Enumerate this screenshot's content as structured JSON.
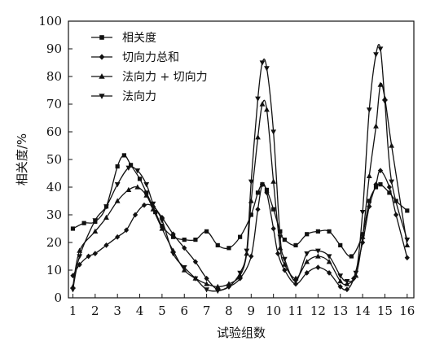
{
  "chart_data": {
    "type": "line",
    "xlabel": "试验组数",
    "ylabel": "相关度/%",
    "xlim": [
      0.8,
      16.3
    ],
    "ylim": [
      0,
      100
    ],
    "x_ticks": [
      1,
      2,
      3,
      4,
      5,
      6,
      7,
      8,
      9,
      10,
      11,
      12,
      13,
      14,
      15,
      16
    ],
    "y_ticks": [
      0,
      10,
      20,
      30,
      40,
      50,
      60,
      70,
      80,
      90,
      100
    ],
    "grid": false,
    "legend_position": "top-left",
    "series": [
      {
        "name": "相关度",
        "marker": "square",
        "x": [
          1,
          1.5,
          2,
          2.5,
          3,
          3.3,
          3.6,
          4,
          4.3,
          4.7,
          5,
          5.5,
          6,
          6.5,
          7,
          7.5,
          8,
          8.5,
          9,
          9.3,
          9.5,
          9.7,
          10,
          10.3,
          10.5,
          11,
          11.5,
          12,
          12.5,
          13,
          13.5,
          14,
          14.3,
          14.6,
          14.8,
          15.2,
          15.5,
          16
        ],
        "y": [
          25,
          27,
          27.5,
          33,
          47.5,
          51.5,
          48,
          43,
          38,
          31,
          26,
          22,
          21,
          21,
          24,
          19,
          18,
          22,
          30,
          38,
          41,
          39,
          32,
          24,
          21,
          19,
          23,
          24,
          24,
          19,
          15,
          23,
          35,
          40,
          41,
          38,
          35,
          31.5
        ]
      },
      {
        "name": "切向力总和",
        "marker": "diamond",
        "x": [
          1,
          1.3,
          1.7,
          2,
          2.5,
          3,
          3.4,
          3.8,
          4.2,
          4.6,
          5,
          5.5,
          6,
          6.5,
          7,
          7.5,
          8,
          8.5,
          9,
          9.3,
          9.5,
          9.7,
          10,
          10.2,
          10.5,
          11,
          11.5,
          12,
          12.5,
          13,
          13.3,
          13.6,
          14,
          14.3,
          14.6,
          14.8,
          15.2,
          15.5,
          16
        ],
        "y": [
          8,
          12,
          15,
          16,
          19,
          22,
          24.5,
          30,
          33.5,
          33,
          29,
          23,
          18,
          13,
          7,
          3,
          4,
          7,
          15,
          32,
          41,
          38,
          25,
          16,
          10,
          5,
          9,
          11,
          9,
          4,
          3,
          7,
          20,
          33,
          41,
          46,
          40,
          30,
          14.5
        ]
      },
      {
        "name": "法向力 + 切向力",
        "marker": "triangle-up",
        "x": [
          1,
          1.3,
          2,
          2.5,
          3,
          3.5,
          3.9,
          4.3,
          4.6,
          5,
          5.5,
          6,
          6.5,
          7,
          7.5,
          8,
          8.5,
          8.8,
          9,
          9.3,
          9.5,
          9.7,
          10,
          10.3,
          10.5,
          11,
          11.5,
          12,
          12.5,
          13,
          13.3,
          13.7,
          14,
          14.3,
          14.6,
          14.8,
          15,
          15.3,
          16
        ],
        "y": [
          4,
          17,
          24,
          29,
          35,
          39,
          40,
          37,
          32,
          25,
          17,
          10,
          7,
          5,
          4,
          5,
          8,
          16,
          35,
          58,
          70,
          68,
          42,
          18,
          12,
          7,
          13,
          15,
          13,
          6,
          5,
          8,
          22,
          44,
          62,
          77,
          72,
          55,
          19
        ]
      },
      {
        "name": "法向力",
        "marker": "triangle-down",
        "x": [
          1,
          1.3,
          2,
          2.5,
          3,
          3.5,
          3.9,
          4.3,
          4.6,
          5,
          5.5,
          6,
          6.5,
          7,
          7.5,
          8,
          8.5,
          8.8,
          9,
          9.3,
          9.5,
          9.7,
          10,
          10.3,
          10.5,
          11,
          11.5,
          12,
          12.5,
          13,
          13.3,
          13.7,
          14,
          14.3,
          14.6,
          14.8,
          15,
          15.3,
          16
        ],
        "y": [
          3,
          15,
          28,
          33,
          41,
          47,
          46,
          41,
          34,
          28,
          16,
          11,
          7,
          3,
          2.5,
          4,
          9,
          17,
          42,
          72,
          85,
          83,
          60,
          22,
          14,
          6,
          16,
          17,
          15,
          8,
          6,
          9,
          31,
          68,
          88,
          90,
          71,
          42,
          21
        ]
      }
    ]
  }
}
